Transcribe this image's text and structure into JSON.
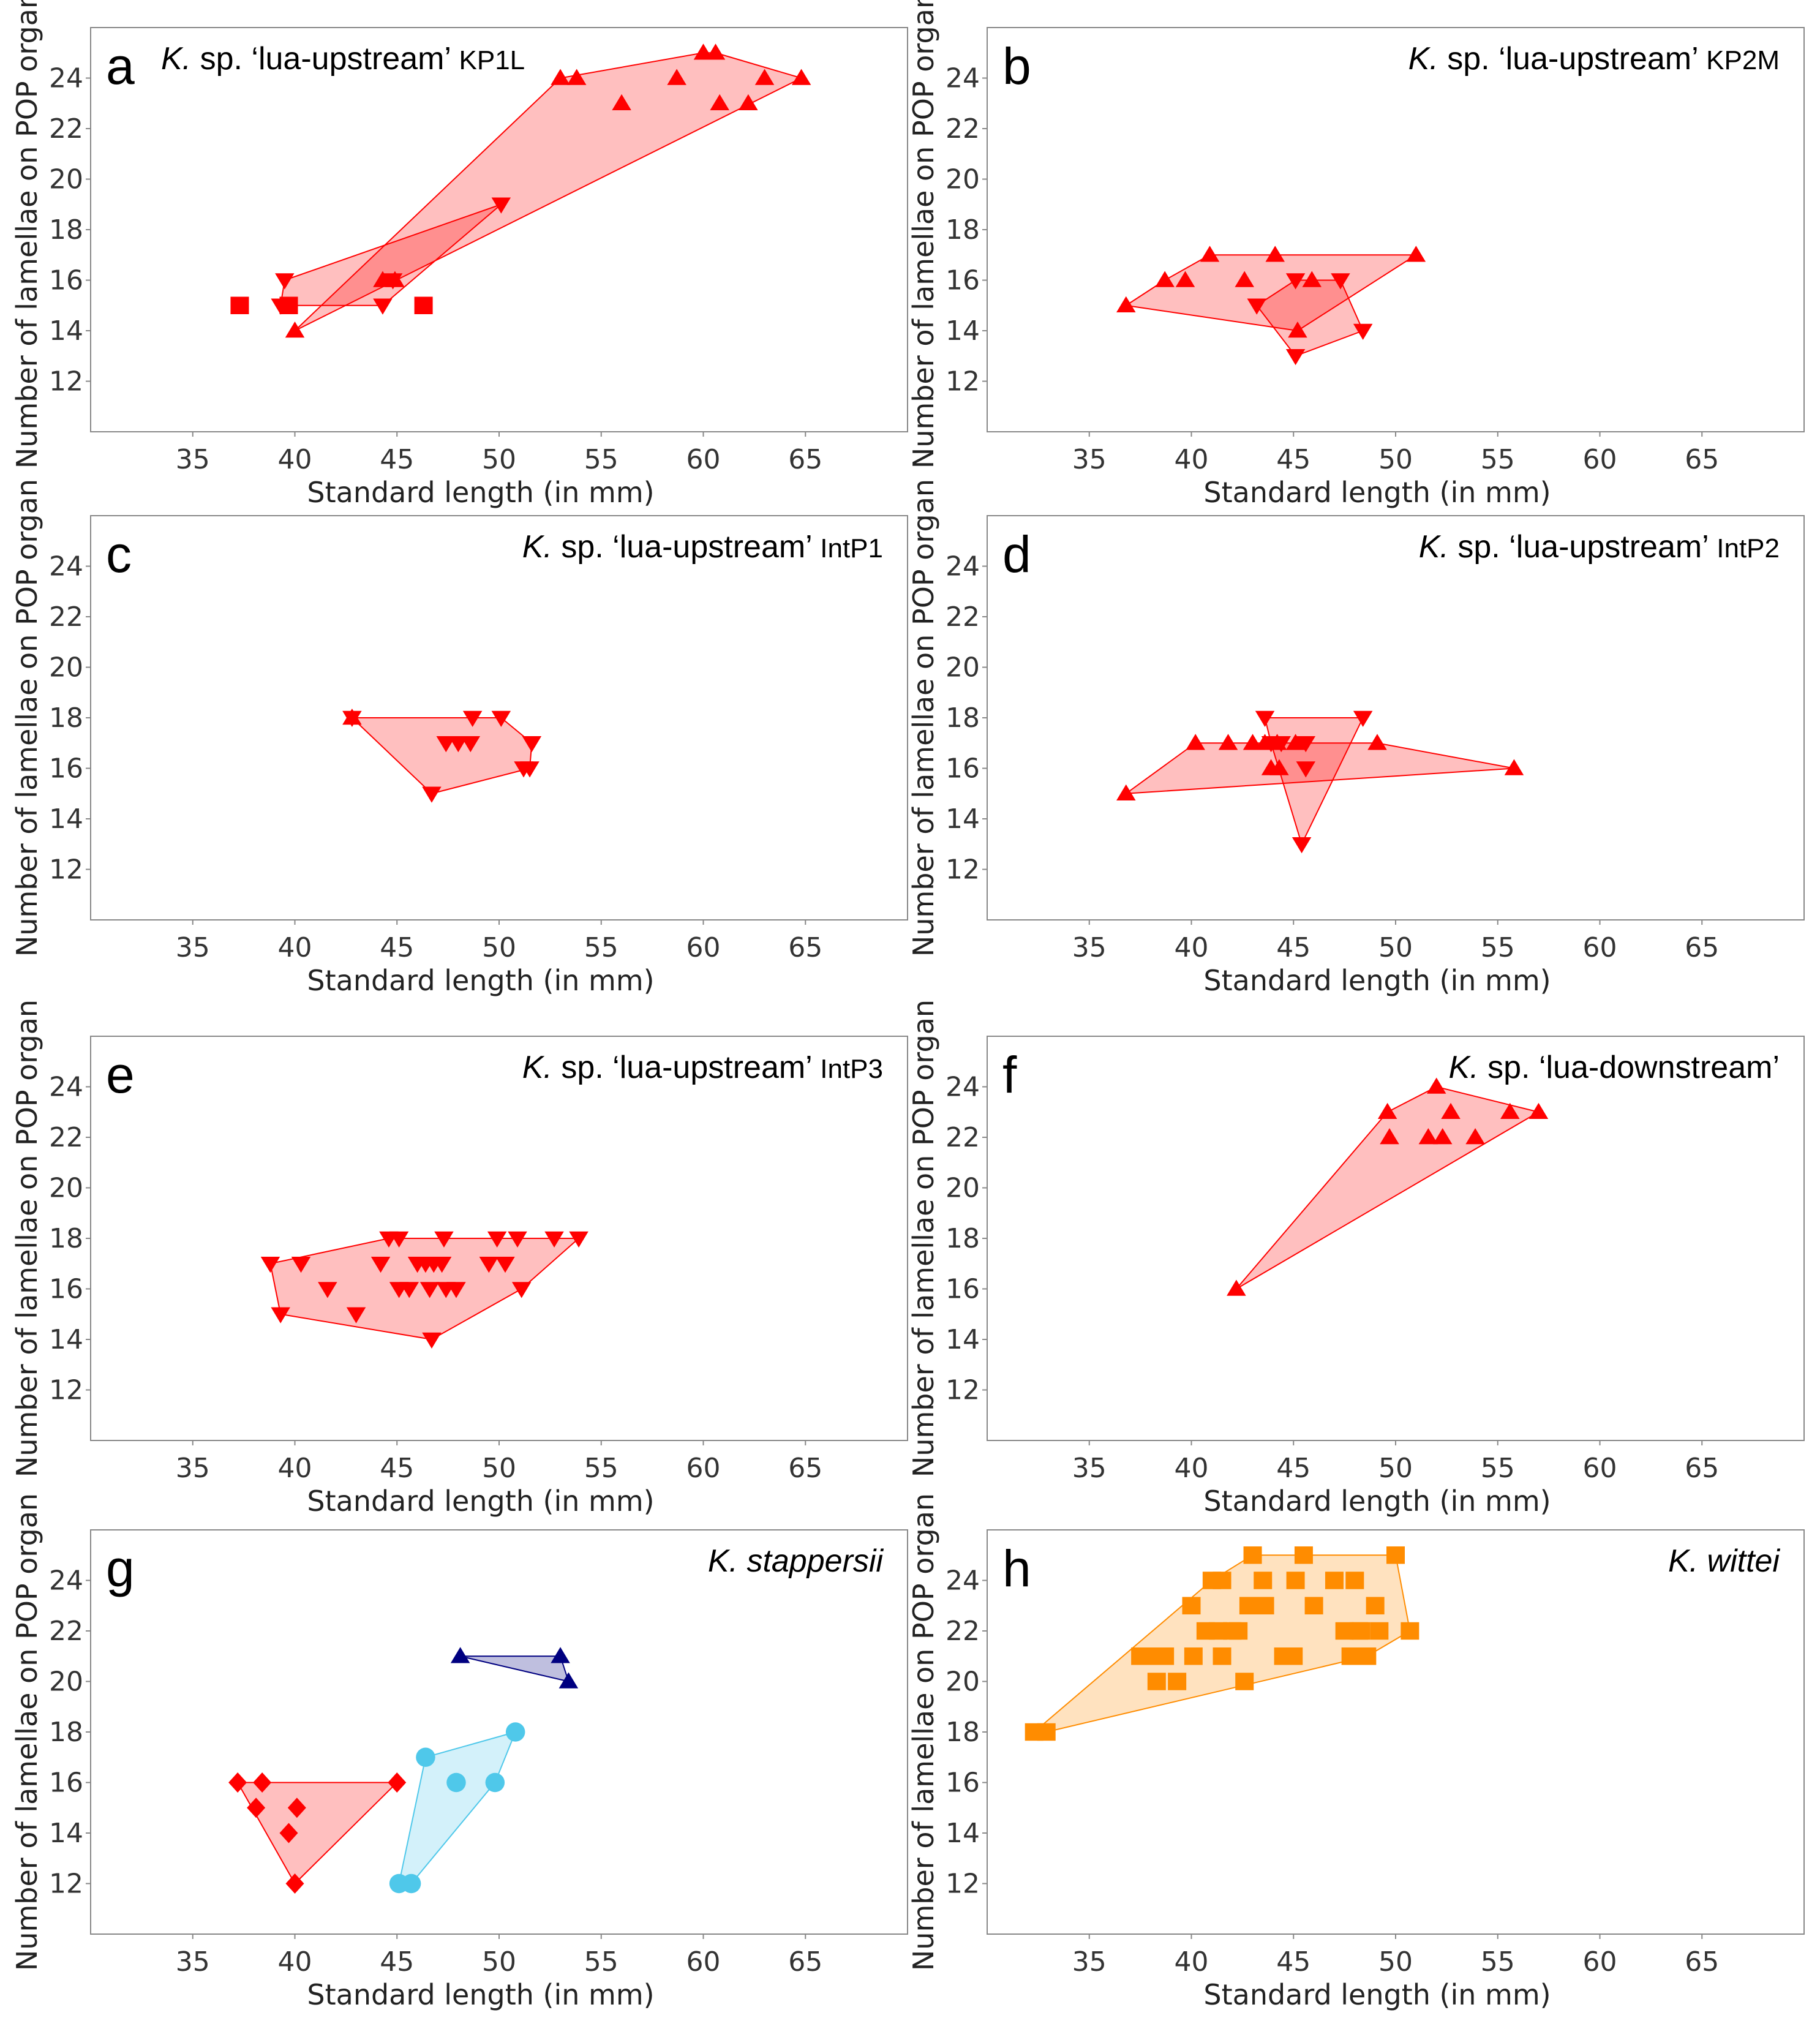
{
  "figure": {
    "description_labels": {
      "xlabel": "Standard length (in mm)",
      "ylabel": "Number of lamellae on POP organ"
    }
  },
  "colors": {
    "red": "#ff0000",
    "red_fill": "#ff0000",
    "light_blue": "#4fc8ea",
    "navy": "#000080",
    "orange": "#ff8c00",
    "frame": "#888888"
  },
  "chart_data": [
    {
      "panel": "a",
      "type": "scatter",
      "title_italic": "K.",
      "title_main": " sp. ‘lua-upstream’ ",
      "title_sub": "KP1L",
      "xlabel": "Standard length (in mm)",
      "ylabel": "Number of lamellae on POP organ",
      "xlim": [
        30,
        70
      ],
      "ylim": [
        10,
        26
      ],
      "xticks": [
        35,
        40,
        45,
        50,
        55,
        60,
        65
      ],
      "yticks": [
        12,
        14,
        16,
        18,
        20,
        22,
        24
      ],
      "grid": false,
      "series": [
        {
          "name": "up-triangle",
          "marker": "triangle-up",
          "color": "#ff0000",
          "hull": true,
          "x": [
            53.0,
            53.8,
            56.0,
            58.7,
            60.0,
            60.6,
            60.8,
            62.2,
            63.0,
            64.8,
            40.0,
            44.3,
            44.9
          ],
          "y": [
            24,
            24,
            23,
            24,
            25,
            25,
            23,
            23,
            24,
            24,
            14,
            16,
            16
          ]
        },
        {
          "name": "down-triangle",
          "marker": "triangle-down",
          "color": "#ff0000",
          "hull": true,
          "x": [
            39.5,
            44.3,
            44.8,
            50.1,
            39.3
          ],
          "y": [
            16,
            15,
            16,
            19,
            15
          ]
        },
        {
          "name": "square",
          "marker": "square",
          "color": "#ff0000",
          "hull": false,
          "x": [
            37.3,
            39.7,
            46.3
          ],
          "y": [
            15,
            15,
            15
          ]
        }
      ]
    },
    {
      "panel": "b",
      "type": "scatter",
      "title_italic": "K.",
      "title_main": " sp. ‘lua-upstream’ ",
      "title_sub": "KP2M",
      "xlabel": "Standard length (in mm)",
      "ylabel": "Number of lamellae on POP organ",
      "xlim": [
        30,
        70
      ],
      "ylim": [
        10,
        26
      ],
      "xticks": [
        35,
        40,
        45,
        50,
        55,
        60,
        65
      ],
      "yticks": [
        12,
        14,
        16,
        18,
        20,
        22,
        24
      ],
      "grid": false,
      "series": [
        {
          "name": "up-triangle",
          "marker": "triangle-up",
          "color": "#ff0000",
          "hull": true,
          "x": [
            36.8,
            38.7,
            39.7,
            40.9,
            42.6,
            44.1,
            45.9,
            45.2,
            51.0
          ],
          "y": [
            15,
            16,
            16,
            17,
            16,
            17,
            16,
            14,
            17
          ]
        },
        {
          "name": "down-triangle",
          "marker": "triangle-down",
          "color": "#ff0000",
          "hull": true,
          "x": [
            43.2,
            45.1,
            45.1,
            47.3,
            48.4
          ],
          "y": [
            15,
            16,
            13,
            16,
            14
          ]
        }
      ]
    },
    {
      "panel": "c",
      "type": "scatter",
      "title_italic": "K.",
      "title_main": " sp. ‘lua-upstream’ ",
      "title_sub": "IntP1",
      "xlabel": "Standard length (in mm)",
      "ylabel": "Number of lamellae on POP organ",
      "xlim": [
        30,
        70
      ],
      "ylim": [
        10,
        26
      ],
      "xticks": [
        35,
        40,
        45,
        50,
        55,
        60,
        65
      ],
      "yticks": [
        12,
        14,
        16,
        18,
        20,
        22,
        24
      ],
      "grid": false,
      "series": [
        {
          "name": "up-triangle",
          "marker": "triangle-up",
          "color": "#ff0000",
          "hull": false,
          "x": [
            42.8
          ],
          "y": [
            18
          ]
        },
        {
          "name": "down-triangle",
          "marker": "triangle-down",
          "color": "#ff0000",
          "hull": true,
          "x": [
            42.8,
            48.7,
            50.1,
            47.4,
            48.0,
            48.6,
            51.6,
            51.2,
            51.5,
            46.7
          ],
          "y": [
            18,
            18,
            18,
            17,
            17,
            17,
            17,
            16,
            16,
            15
          ]
        }
      ]
    },
    {
      "panel": "d",
      "type": "scatter",
      "title_italic": "K.",
      "title_main": " sp. ‘lua-upstream’ ",
      "title_sub": "IntP2",
      "xlabel": "Standard length (in mm)",
      "ylabel": "Number of lamellae on POP organ",
      "xlim": [
        30,
        70
      ],
      "ylim": [
        10,
        26
      ],
      "xticks": [
        35,
        40,
        45,
        50,
        55,
        60,
        65
      ],
      "yticks": [
        12,
        14,
        16,
        18,
        20,
        22,
        24
      ],
      "grid": false,
      "series": [
        {
          "name": "up-triangle",
          "marker": "triangle-up",
          "color": "#ff0000",
          "hull": true,
          "x": [
            36.8,
            40.2,
            41.8,
            43.0,
            43.6,
            44.2,
            43.9,
            44.3,
            45.1,
            49.1,
            55.8
          ],
          "y": [
            15,
            17,
            17,
            17,
            17,
            17,
            16,
            16,
            17,
            17,
            16
          ]
        },
        {
          "name": "down-triangle",
          "marker": "triangle-down",
          "color": "#ff0000",
          "hull": true,
          "x": [
            43.6,
            48.4,
            43.9,
            44.4,
            45.6,
            45.6,
            45.4
          ],
          "y": [
            18,
            18,
            17,
            17,
            17,
            16,
            13
          ]
        }
      ]
    },
    {
      "panel": "e",
      "type": "scatter",
      "title_italic": "K.",
      "title_main": " sp. ‘lua-upstream’ ",
      "title_sub": "IntP3",
      "xlabel": "Standard length (in mm)",
      "ylabel": "Number of lamellae on POP organ",
      "xlim": [
        30,
        70
      ],
      "ylim": [
        10,
        26
      ],
      "xticks": [
        35,
        40,
        45,
        50,
        55,
        60,
        65
      ],
      "yticks": [
        12,
        14,
        16,
        18,
        20,
        22,
        24
      ],
      "grid": false,
      "series": [
        {
          "name": "down-triangle",
          "marker": "triangle-down",
          "color": "#ff0000",
          "hull": true,
          "x": [
            38.8,
            40.3,
            39.3,
            41.6,
            43.0,
            44.2,
            44.6,
            45.1,
            45.1,
            45.6,
            46.0,
            46.4,
            46.6,
            46.8,
            47.3,
            47.2,
            47.4,
            47.9,
            49.5,
            49.9,
            50.3,
            50.9,
            51.1,
            52.7,
            53.9,
            46.7
          ],
          "y": [
            17,
            17,
            15,
            16,
            15,
            17,
            18,
            18,
            16,
            16,
            17,
            17,
            16,
            17,
            18,
            17,
            16,
            16,
            17,
            18,
            17,
            18,
            16,
            18,
            18,
            14
          ]
        }
      ]
    },
    {
      "panel": "f",
      "type": "scatter",
      "title_italic": "K.",
      "title_main": " sp. ‘lua-downstream’",
      "title_sub": "",
      "xlabel": "Standard length (in mm)",
      "ylabel": "Number of lamellae on POP organ",
      "xlim": [
        30,
        70
      ],
      "ylim": [
        10,
        26
      ],
      "xticks": [
        35,
        40,
        45,
        50,
        55,
        60,
        65
      ],
      "yticks": [
        12,
        14,
        16,
        18,
        20,
        22,
        24
      ],
      "grid": false,
      "series": [
        {
          "name": "up-triangle",
          "marker": "triangle-up",
          "color": "#ff0000",
          "hull": true,
          "x": [
            42.2,
            49.6,
            49.7,
            51.6,
            52.0,
            52.3,
            52.7,
            53.9,
            55.6,
            57.0
          ],
          "y": [
            16,
            23,
            22,
            22,
            24,
            22,
            23,
            22,
            23,
            23
          ]
        }
      ]
    },
    {
      "panel": "g",
      "type": "scatter",
      "title_italic": "K. stappersii",
      "title_main": "",
      "title_sub": "",
      "xlabel": "Standard length (in mm)",
      "ylabel": "Number of lamellae on POP organ",
      "xlim": [
        30,
        70
      ],
      "ylim": [
        10,
        26
      ],
      "xticks": [
        35,
        40,
        45,
        50,
        55,
        60,
        65
      ],
      "yticks": [
        12,
        14,
        16,
        18,
        20,
        22,
        24
      ],
      "grid": false,
      "series": [
        {
          "name": "diamond",
          "marker": "diamond",
          "color": "#ff0000",
          "hull": true,
          "x": [
            37.2,
            38.4,
            38.1,
            40.1,
            39.7,
            40.0,
            45.0
          ],
          "y": [
            16,
            16,
            15,
            15,
            14,
            12,
            16
          ]
        },
        {
          "name": "circle",
          "marker": "circle",
          "color": "#4fc8ea",
          "hull": true,
          "x": [
            46.4,
            47.9,
            49.8,
            50.8,
            45.1,
            45.7
          ],
          "y": [
            17,
            16,
            16,
            18,
            12,
            12
          ]
        },
        {
          "name": "navy-triangle",
          "marker": "triangle-up",
          "color": "#000080",
          "hull": true,
          "x": [
            48.1,
            53.0,
            53.4
          ],
          "y": [
            21,
            21,
            20
          ]
        }
      ]
    },
    {
      "panel": "h",
      "type": "scatter",
      "title_italic": "K. wittei",
      "title_main": "",
      "title_sub": "",
      "xlabel": "Standard length (in mm)",
      "ylabel": "Number of lamellae on POP organ",
      "xlim": [
        30,
        70
      ],
      "ylim": [
        10,
        26
      ],
      "xticks": [
        35,
        40,
        45,
        50,
        55,
        60,
        65
      ],
      "yticks": [
        12,
        14,
        16,
        18,
        20,
        22,
        24
      ],
      "grid": false,
      "series": [
        {
          "name": "square",
          "marker": "square",
          "color": "#ff8c00",
          "hull": true,
          "x": [
            32.3,
            32.9,
            37.5,
            38.0,
            38.7,
            38.3,
            39.3,
            40.0,
            40.1,
            40.7,
            41.0,
            41.3,
            41.5,
            42.3,
            41.5,
            42.0,
            42.6,
            43.0,
            43.3,
            42.8,
            43.5,
            43.6,
            44.5,
            45.0,
            45.1,
            45.5,
            46.0,
            47.0,
            47.5,
            47.8,
            48.0,
            48.3,
            48.6,
            48.2,
            49.0,
            49.2,
            50.0,
            50.7
          ],
          "y": [
            18,
            18,
            21,
            21,
            21,
            20,
            20,
            23,
            21,
            22,
            24,
            22,
            24,
            22,
            21,
            22,
            20,
            25,
            23,
            23,
            24,
            23,
            21,
            21,
            24,
            25,
            23,
            24,
            22,
            21,
            24,
            22,
            21,
            22,
            23,
            22,
            25,
            22
          ]
        }
      ]
    }
  ]
}
